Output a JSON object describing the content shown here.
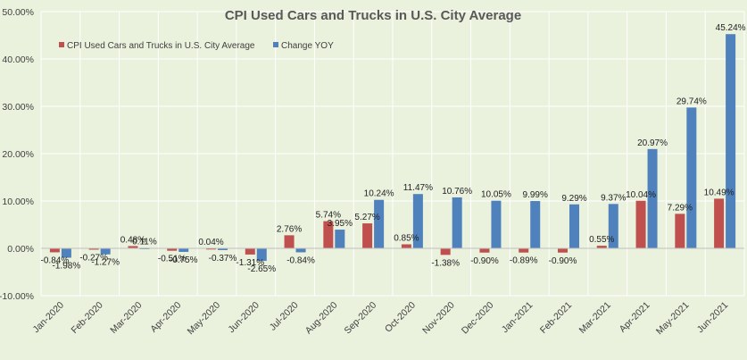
{
  "chart_data": {
    "type": "bar",
    "title": "CPI Used Cars and Trucks in U.S. City Average",
    "xlabel": "",
    "ylabel": "",
    "ylim": [
      -10,
      50
    ],
    "ytick_labels": [
      "-10.00%",
      "0.00%",
      "10.00%",
      "20.00%",
      "30.00%",
      "40.00%",
      "50.00%"
    ],
    "ytick_values": [
      -10,
      0,
      10,
      20,
      30,
      40,
      50
    ],
    "grid": true,
    "legend_position": "top-left",
    "categories": [
      "Jan-2020",
      "Feb-2020",
      "Mar-2020",
      "Apr-2020",
      "May-2020",
      "Jun-2020",
      "Jul-2020",
      "Aug-2020",
      "Sep-2020",
      "Oct-2020",
      "Nov-2020",
      "Dec-2020",
      "Jan-2021",
      "Feb-2021",
      "Mar-2021",
      "Apr-2021",
      "May-2021",
      "Jun-2021"
    ],
    "series": [
      {
        "name": "CPI Used Cars and Trucks in U.S. City Average",
        "color": "#c0504d",
        "values": [
          -0.84,
          -0.27,
          0.48,
          -0.51,
          0.04,
          -1.31,
          2.76,
          5.74,
          5.27,
          0.85,
          -1.38,
          -0.9,
          -0.89,
          -0.9,
          0.55,
          10.04,
          7.29,
          10.49
        ],
        "labels": [
          "-0.84%",
          "-0.27%",
          "0.48%",
          "-0.51%",
          "0.04%",
          "-1.31%",
          "2.76%",
          "5.74%",
          "5.27%",
          "0.85%",
          "-1.38%",
          "-0.90%",
          "-0.89%",
          "-0.90%",
          "0.55%",
          "10.04%",
          "7.29%",
          "10.49%"
        ]
      },
      {
        "name": "Change YOY",
        "color": "#4f81bd",
        "values": [
          -1.98,
          -1.27,
          0.11,
          -0.75,
          -0.37,
          -2.65,
          -0.84,
          3.95,
          10.24,
          11.47,
          10.76,
          10.05,
          9.99,
          9.29,
          9.37,
          20.97,
          29.74,
          45.24
        ],
        "labels": [
          "-1.98%",
          "-1.27%",
          "0.11%",
          "-0.75%",
          "-0.37%",
          "-2.65%",
          "-0.84%",
          "3.95%",
          "10.24%",
          "11.47%",
          "10.76%",
          "10.05%",
          "9.99%",
          "9.29%",
          "9.37%",
          "20.97%",
          "29.74%",
          "45.24%"
        ]
      }
    ],
    "colors": {
      "background": "#eaf1dd",
      "grid": "#ffffff",
      "axis": "#bfbfbf"
    }
  }
}
